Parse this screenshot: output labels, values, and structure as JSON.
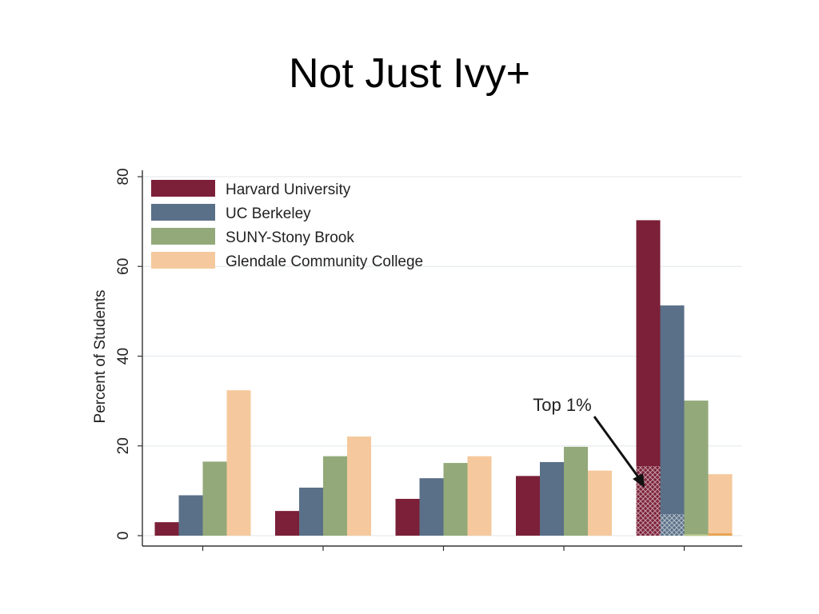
{
  "slide": {
    "title": "Not Just Ivy+"
  },
  "colors": {
    "harvard": "#7b2038",
    "berkeley": "#5a7088",
    "stony_brook": "#93a97a",
    "glendale": "#f5c99d",
    "grid": "#e6ebee"
  },
  "chart_data": {
    "type": "bar",
    "categories": [
      "",
      "",
      "",
      "",
      ""
    ],
    "series": [
      {
        "name": "Harvard University",
        "values": [
          3.0,
          5.5,
          8.2,
          13.3,
          70.3
        ],
        "top1": 15.5
      },
      {
        "name": "UC Berkeley",
        "values": [
          9.0,
          10.7,
          12.8,
          16.4,
          51.3
        ],
        "top1": 4.8
      },
      {
        "name": "SUNY-Stony Brook",
        "values": [
          16.5,
          17.7,
          16.2,
          19.8,
          30.1
        ],
        "top1": 0.3
      },
      {
        "name": "Glendale Community College",
        "values": [
          32.4,
          22.1,
          17.7,
          14.5,
          13.7
        ],
        "top1": 0.5
      }
    ],
    "ylabel": "Percent of Students",
    "xlabel": "",
    "ylim": [
      0,
      80
    ],
    "yticks": [
      0,
      20,
      40,
      60,
      80
    ],
    "grid": true,
    "legend": "top-left",
    "annotation": {
      "text": "Top 1%",
      "category_index": 4
    }
  }
}
